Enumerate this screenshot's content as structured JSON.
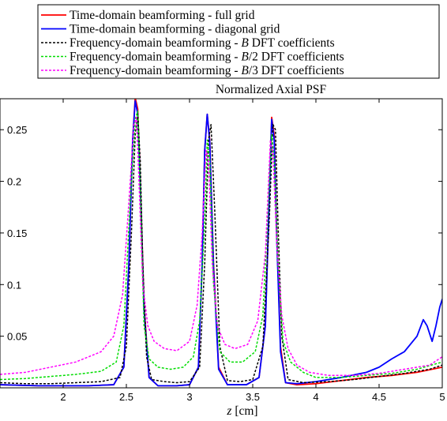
{
  "chart_data": {
    "type": "line",
    "title": "Normalized Axial PSF",
    "xlabel": "z [cm]",
    "xlabel_var": "z",
    "xlabel_unit": " [cm]",
    "ylabel": "",
    "xlim": [
      1.5,
      5
    ],
    "ylim": [
      0,
      0.28
    ],
    "xticks": [
      2,
      2.5,
      3,
      3.5,
      4,
      4.5,
      5
    ],
    "yticks": [
      0.05,
      0.1,
      0.15,
      0.2,
      0.25
    ],
    "xtick_labels": [
      "2",
      "2.5",
      "3",
      "3.5",
      "4",
      "4.5",
      "5"
    ],
    "ytick_labels": [
      "0.05",
      "0.1",
      "0.15",
      "0.2",
      "0.25"
    ],
    "grid": false,
    "legend_position": "above plot",
    "series": [
      {
        "name": "Time-domain beamforming - full grid",
        "color": "#ff0000",
        "dash": "solid",
        "x": [
          1.5,
          1.8,
          2.0,
          2.2,
          2.4,
          2.48,
          2.52,
          2.55,
          2.57,
          2.59,
          2.61,
          2.64,
          2.68,
          2.75,
          2.9,
          3.0,
          3.07,
          3.1,
          3.12,
          3.14,
          3.16,
          3.19,
          3.23,
          3.3,
          3.45,
          3.55,
          3.6,
          3.63,
          3.65,
          3.67,
          3.69,
          3.72,
          3.76,
          3.85,
          4.0,
          4.2,
          4.4,
          4.6,
          4.8,
          5.0
        ],
        "y": [
          0.003,
          0.002,
          0.002,
          0.002,
          0.003,
          0.02,
          0.12,
          0.24,
          0.281,
          0.27,
          0.2,
          0.08,
          0.01,
          0.002,
          0.002,
          0.003,
          0.02,
          0.12,
          0.23,
          0.265,
          0.24,
          0.12,
          0.02,
          0.003,
          0.003,
          0.01,
          0.06,
          0.18,
          0.262,
          0.245,
          0.15,
          0.04,
          0.005,
          0.003,
          0.004,
          0.007,
          0.01,
          0.012,
          0.015,
          0.02
        ]
      },
      {
        "name": "Time-domain beamforming - diagonal grid",
        "color": "#0000ff",
        "dash": "solid",
        "x": [
          1.5,
          1.8,
          2.0,
          2.2,
          2.4,
          2.48,
          2.52,
          2.55,
          2.57,
          2.59,
          2.61,
          2.64,
          2.68,
          2.75,
          2.9,
          3.0,
          3.07,
          3.1,
          3.12,
          3.14,
          3.16,
          3.19,
          3.23,
          3.3,
          3.45,
          3.55,
          3.6,
          3.63,
          3.65,
          3.67,
          3.69,
          3.72,
          3.76,
          3.85,
          4.0,
          4.2,
          4.4,
          4.5,
          4.6,
          4.7,
          4.8,
          4.85,
          4.88,
          4.92,
          4.95,
          4.98,
          5.0
        ],
        "y": [
          0.003,
          0.002,
          0.002,
          0.002,
          0.003,
          0.02,
          0.12,
          0.24,
          0.278,
          0.265,
          0.195,
          0.075,
          0.01,
          0.002,
          0.002,
          0.003,
          0.02,
          0.12,
          0.23,
          0.265,
          0.238,
          0.115,
          0.018,
          0.003,
          0.003,
          0.01,
          0.06,
          0.18,
          0.26,
          0.24,
          0.145,
          0.035,
          0.005,
          0.004,
          0.006,
          0.01,
          0.015,
          0.02,
          0.028,
          0.035,
          0.05,
          0.066,
          0.06,
          0.045,
          0.06,
          0.078,
          0.086
        ]
      },
      {
        "name": "Frequency-domain beamforming - B DFT coefficients",
        "label_prefix": "Frequency-domain beamforming - ",
        "label_var": "B",
        "label_suffix": " DFT coefficients",
        "color": "#000000",
        "dash": "3,2",
        "x": [
          1.5,
          1.7,
          1.9,
          2.1,
          2.3,
          2.45,
          2.5,
          2.54,
          2.57,
          2.59,
          2.61,
          2.63,
          2.66,
          2.7,
          2.8,
          2.9,
          3.0,
          3.08,
          3.12,
          3.15,
          3.17,
          3.2,
          3.24,
          3.3,
          3.4,
          3.5,
          3.58,
          3.63,
          3.66,
          3.68,
          3.7,
          3.73,
          3.78,
          3.9,
          4.1,
          4.3,
          4.5,
          4.7,
          4.9,
          5.0
        ],
        "y": [
          0.005,
          0.004,
          0.004,
          0.005,
          0.006,
          0.01,
          0.04,
          0.15,
          0.245,
          0.265,
          0.22,
          0.12,
          0.03,
          0.008,
          0.006,
          0.005,
          0.006,
          0.02,
          0.12,
          0.24,
          0.255,
          0.17,
          0.04,
          0.007,
          0.006,
          0.008,
          0.04,
          0.16,
          0.255,
          0.25,
          0.16,
          0.05,
          0.008,
          0.005,
          0.006,
          0.008,
          0.011,
          0.014,
          0.018,
          0.022
        ]
      },
      {
        "name": "Frequency-domain beamforming - B/2 DFT coefficients",
        "label_prefix": "Frequency-domain beamforming - ",
        "label_var": "B",
        "label_suffix": "/2 DFT coefficients",
        "color": "#00dd00",
        "dash": "3,2",
        "x": [
          1.5,
          1.7,
          1.9,
          2.1,
          2.3,
          2.42,
          2.48,
          2.53,
          2.57,
          2.59,
          2.61,
          2.64,
          2.68,
          2.75,
          2.85,
          2.95,
          3.03,
          3.08,
          3.12,
          3.14,
          3.16,
          3.19,
          3.24,
          3.32,
          3.42,
          3.52,
          3.58,
          3.62,
          3.65,
          3.67,
          3.7,
          3.74,
          3.8,
          3.9,
          4.0,
          4.2,
          4.4,
          4.6,
          4.8,
          5.0
        ],
        "y": [
          0.008,
          0.009,
          0.011,
          0.013,
          0.016,
          0.025,
          0.06,
          0.18,
          0.26,
          0.268,
          0.19,
          0.06,
          0.028,
          0.02,
          0.018,
          0.02,
          0.03,
          0.065,
          0.16,
          0.24,
          0.22,
          0.1,
          0.035,
          0.025,
          0.025,
          0.035,
          0.07,
          0.17,
          0.245,
          0.22,
          0.12,
          0.045,
          0.025,
          0.015,
          0.01,
          0.01,
          0.012,
          0.014,
          0.018,
          0.025
        ]
      },
      {
        "name": "Frequency-domain beamforming - B/3 DFT coefficients",
        "label_prefix": "Frequency-domain beamforming - ",
        "label_var": "B",
        "label_suffix": "/3 DFT coefficients",
        "color": "#ff00ff",
        "dash": "3,2",
        "x": [
          1.5,
          1.7,
          1.9,
          2.1,
          2.3,
          2.4,
          2.47,
          2.52,
          2.56,
          2.58,
          2.6,
          2.63,
          2.67,
          2.72,
          2.8,
          2.9,
          3.0,
          3.06,
          3.1,
          3.13,
          3.15,
          3.18,
          3.22,
          3.28,
          3.36,
          3.46,
          3.54,
          3.6,
          3.64,
          3.66,
          3.69,
          3.73,
          3.78,
          3.85,
          3.95,
          4.1,
          4.3,
          4.5,
          4.7,
          4.9,
          5.0
        ],
        "y": [
          0.013,
          0.015,
          0.02,
          0.025,
          0.035,
          0.05,
          0.09,
          0.18,
          0.255,
          0.262,
          0.2,
          0.1,
          0.06,
          0.045,
          0.038,
          0.036,
          0.045,
          0.08,
          0.15,
          0.23,
          0.22,
          0.12,
          0.06,
          0.042,
          0.038,
          0.042,
          0.065,
          0.13,
          0.24,
          0.228,
          0.14,
          0.07,
          0.038,
          0.022,
          0.015,
          0.012,
          0.012,
          0.014,
          0.018,
          0.022,
          0.03
        ]
      }
    ]
  }
}
